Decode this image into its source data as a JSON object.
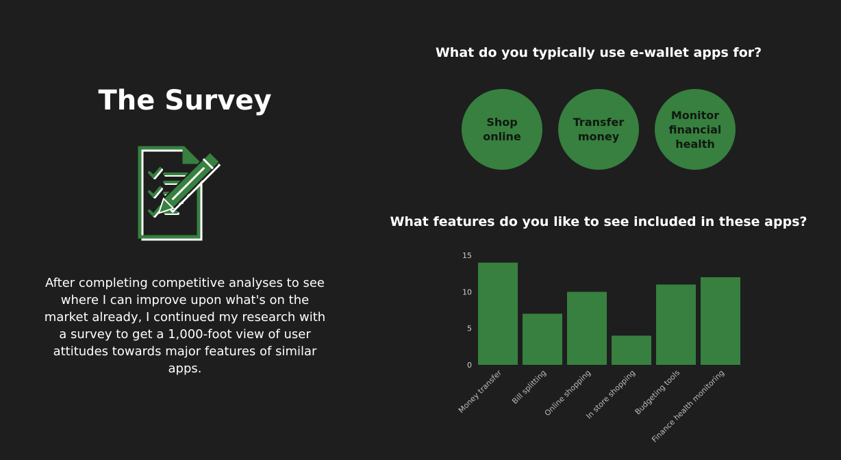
{
  "left": {
    "title": "The Survey",
    "icon": "survey-checklist-pencil-icon",
    "description": "After completing competitive analyses to see where I can improve upon what's on the market already, I  continued my research with a survey to get a 1,000-foot view of user attitudes towards major features of similar apps."
  },
  "right": {
    "question1": "What do you typically use e-wallet apps for?",
    "uses": [
      "Shop\nonline",
      "Transfer\nmoney",
      "Monitor\nfinancial\nhealth"
    ],
    "question2": "What features do you like to see included in these apps?"
  },
  "colors": {
    "background": "#1e1e1e",
    "accent": "#37803f",
    "text": "#ffffff"
  },
  "chart_data": {
    "type": "bar",
    "categories": [
      "Money transfer",
      "Bill splitting",
      "Online shopping",
      "In store shopping",
      "Budgeting tools",
      "Finance health monitoring"
    ],
    "values": [
      14,
      7,
      10,
      4,
      11,
      12
    ],
    "ylim": [
      0,
      15
    ],
    "yticks": [
      0,
      5,
      10,
      15
    ],
    "grid": false,
    "bar_color": "#37803f"
  }
}
